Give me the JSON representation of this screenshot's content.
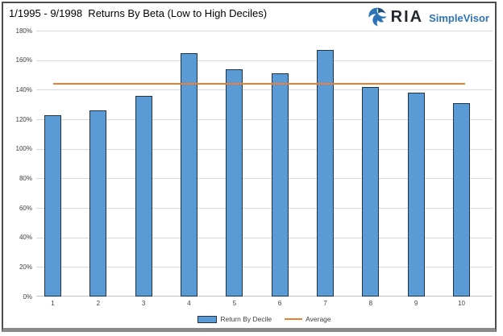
{
  "header": {
    "logo": {
      "brand": "RIA",
      "product": "SimpleVisor",
      "colors": {
        "brand_text": "#23272E",
        "product_text": "#2E74B5",
        "icon_light": "#2E74B5",
        "icon_dark": "#1F4E79"
      }
    }
  },
  "chart_data": {
    "type": "bar",
    "title": "1/1995 - 9/1998  Returns By Beta (Low to High Deciles)",
    "categories": [
      "1",
      "2",
      "3",
      "4",
      "5",
      "6",
      "7",
      "8",
      "9",
      "10"
    ],
    "series": [
      {
        "name": "Return By Decile",
        "type": "bar",
        "values": [
          123,
          126,
          136,
          165,
          154,
          151,
          167,
          142,
          138,
          131
        ]
      },
      {
        "name": "Average",
        "type": "line",
        "value": 144
      }
    ],
    "xlabel": "",
    "ylabel": "",
    "ylim": [
      0,
      180
    ],
    "ytick_values": [
      0,
      20,
      40,
      60,
      80,
      100,
      120,
      140,
      160,
      180
    ],
    "ytick_labels": [
      "0%",
      "20%",
      "40%",
      "60%",
      "80%",
      "100%",
      "120%",
      "140%",
      "160%",
      "180%"
    ],
    "grid": true,
    "legend_position": "bottom",
    "colors": {
      "bar_fill": "#5B9BD5",
      "bar_border": "#1F3349",
      "average_line": "#ED7D31",
      "gridline": "#D9D9D9",
      "axis_line": "#BFBFBF",
      "tick_text": "#3F3F3F",
      "legend_text": "#404040"
    }
  }
}
